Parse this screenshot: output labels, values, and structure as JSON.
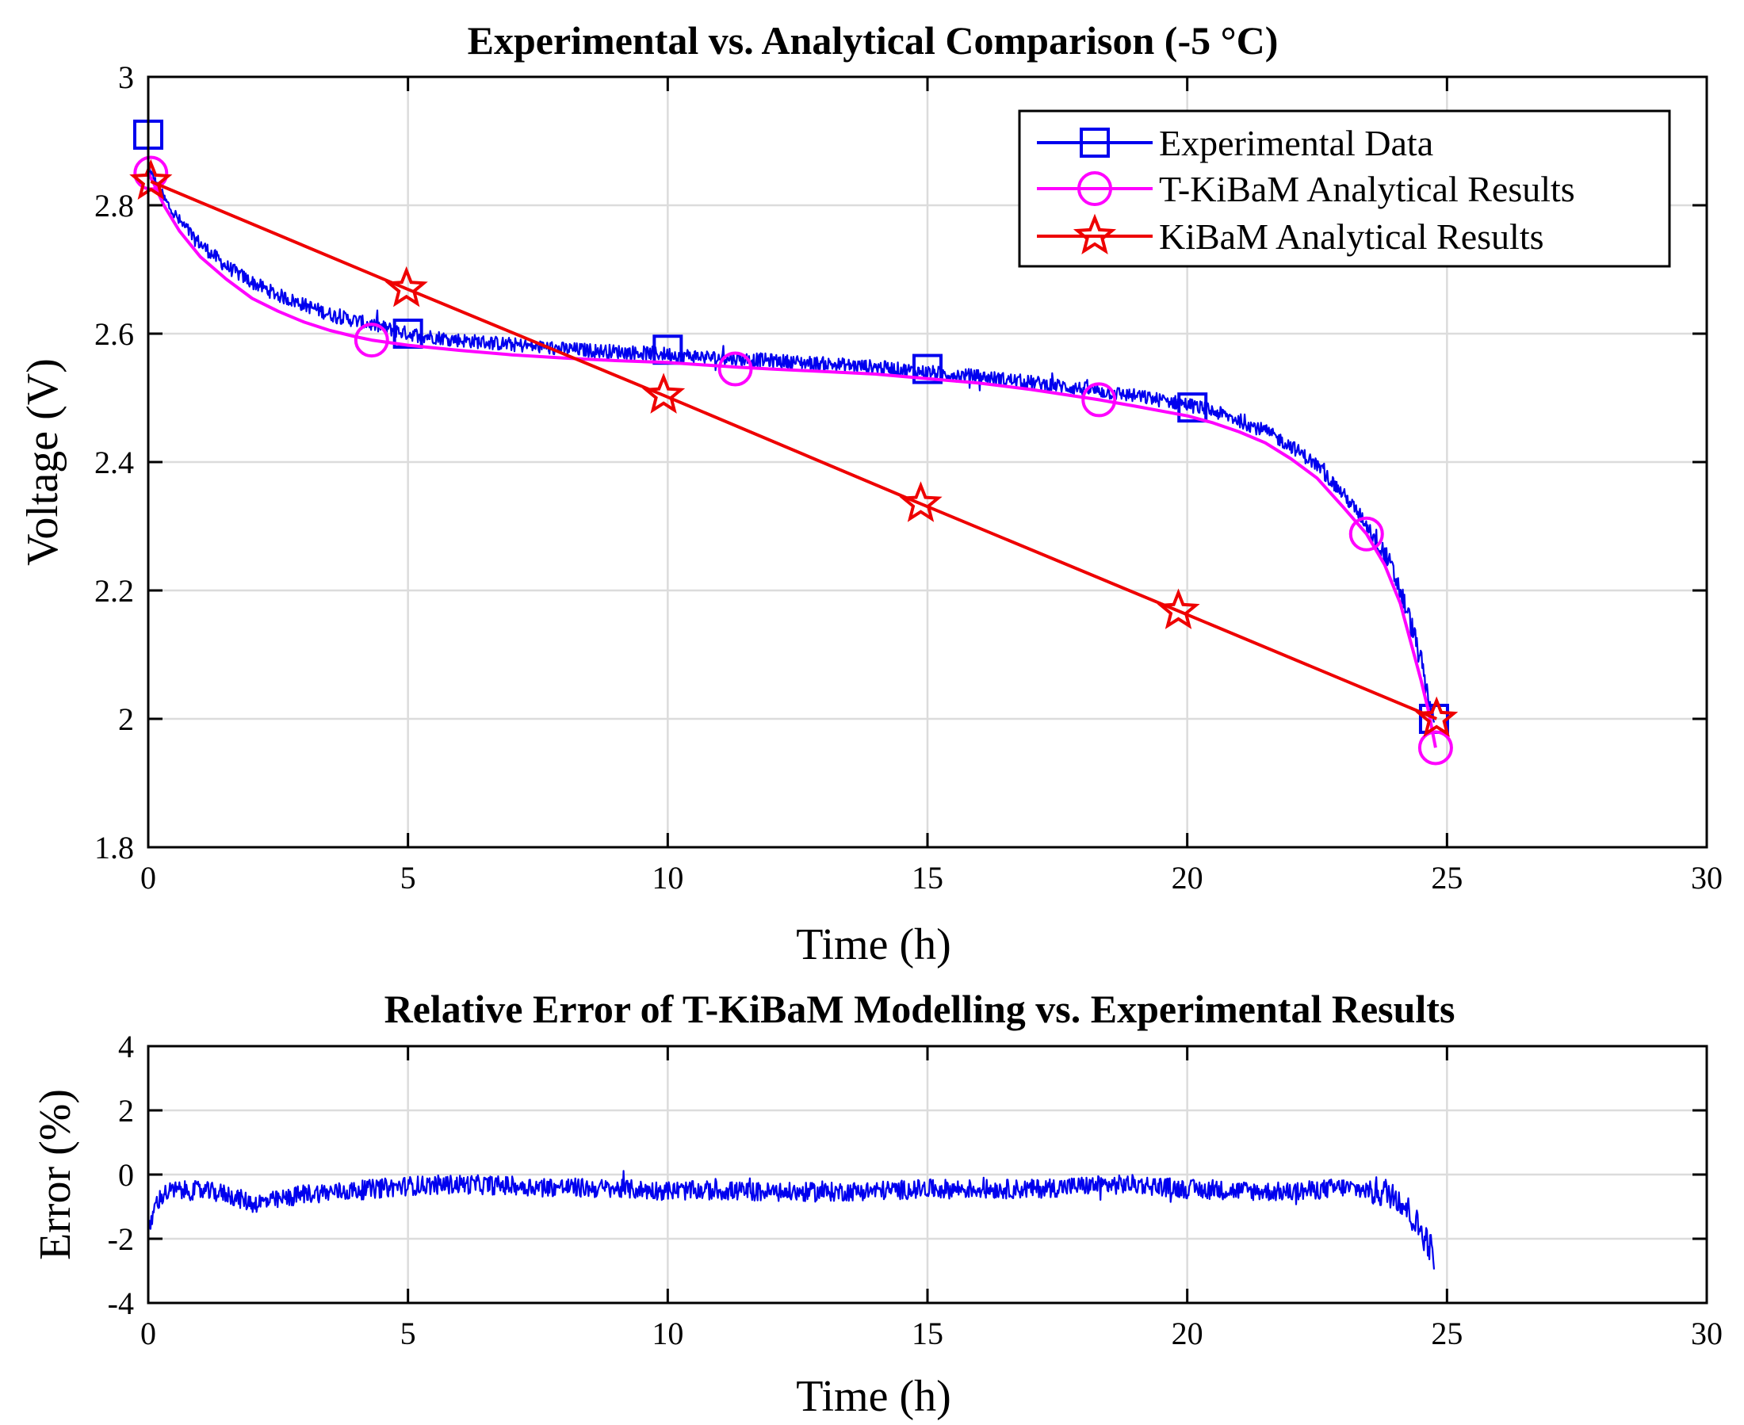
{
  "chart_data": [
    {
      "type": "line",
      "title": "Experimental vs. Analytical Comparison (-5 °C)",
      "xlabel": "Time (h)",
      "ylabel": "Voltage (V)",
      "xlim": [
        0,
        30
      ],
      "ylim": [
        1.8,
        3
      ],
      "xticks": [
        0,
        5,
        10,
        15,
        20,
        25,
        30
      ],
      "xtick_labels": [
        "0",
        "5",
        "10",
        "15",
        "20",
        "25",
        "30"
      ],
      "yticks": [
        1.8,
        2,
        2.2,
        2.4,
        2.6,
        2.8,
        3
      ],
      "ytick_labels": [
        "1.8",
        "2",
        "2.2",
        "2.4",
        "2.6",
        "2.8",
        "3"
      ],
      "grid": true,
      "legend_position": "top-right",
      "series": [
        {
          "name": "Experimental Data",
          "color": "#0000ee",
          "marker": "square",
          "noisy": true,
          "x": [
            0,
            0.1,
            0.3,
            0.6,
            1.0,
            1.5,
            2.0,
            2.5,
            3.0,
            3.5,
            4.0,
            4.5,
            5.0,
            6,
            7,
            8,
            9,
            10,
            11,
            12,
            13,
            14,
            15,
            16,
            17,
            18,
            19,
            20,
            20.5,
            21,
            21.5,
            22,
            22.5,
            23,
            23.3,
            23.6,
            23.9,
            24.1,
            24.3,
            24.5,
            24.65,
            24.75
          ],
          "y": [
            2.86,
            2.84,
            2.81,
            2.775,
            2.74,
            2.705,
            2.68,
            2.66,
            2.645,
            2.63,
            2.62,
            2.61,
            2.6,
            2.59,
            2.583,
            2.576,
            2.572,
            2.568,
            2.562,
            2.558,
            2.553,
            2.548,
            2.54,
            2.533,
            2.524,
            2.514,
            2.503,
            2.49,
            2.479,
            2.465,
            2.448,
            2.425,
            2.395,
            2.35,
            2.32,
            2.285,
            2.24,
            2.2,
            2.15,
            2.09,
            2.03,
            2.0
          ],
          "marker_x": [
            0,
            5.0,
            10.0,
            15.0,
            20.1,
            24.75
          ],
          "marker_y": [
            2.91,
            2.6,
            2.575,
            2.545,
            2.485,
            2.0
          ]
        },
        {
          "name": "T-KiBaM Analytical Results",
          "color": "#ff00ff",
          "marker": "circle",
          "noisy": false,
          "x": [
            0,
            0.1,
            0.3,
            0.6,
            1.0,
            1.5,
            2.0,
            2.5,
            3.0,
            3.5,
            4.0,
            4.3,
            5.0,
            6,
            7,
            8,
            9,
            10,
            11.3,
            12,
            13,
            14,
            15,
            16,
            17,
            18.3,
            19,
            20,
            20.5,
            21,
            21.5,
            22,
            22.5,
            23,
            23.45,
            23.8,
            24.1,
            24.3,
            24.5,
            24.65,
            24.78
          ],
          "y": [
            2.85,
            2.835,
            2.8,
            2.76,
            2.72,
            2.685,
            2.655,
            2.635,
            2.618,
            2.605,
            2.595,
            2.59,
            2.582,
            2.574,
            2.567,
            2.562,
            2.558,
            2.555,
            2.548,
            2.545,
            2.541,
            2.537,
            2.53,
            2.523,
            2.513,
            2.497,
            2.487,
            2.472,
            2.461,
            2.447,
            2.43,
            2.405,
            2.375,
            2.33,
            2.288,
            2.24,
            2.18,
            2.12,
            2.06,
            2.01,
            1.955
          ],
          "marker_x": [
            0.05,
            4.3,
            11.3,
            18.3,
            23.45,
            24.78
          ],
          "marker_y": [
            2.85,
            2.59,
            2.545,
            2.497,
            2.288,
            1.955
          ]
        },
        {
          "name": "KiBaM Analytical Results",
          "color": "#ee0000",
          "marker": "star",
          "noisy": false,
          "x": [
            0.05,
            4.97,
            9.92,
            14.87,
            19.83,
            24.8
          ],
          "y": [
            2.837,
            2.67,
            2.504,
            2.335,
            2.168,
            2.0
          ],
          "marker_x": [
            0.05,
            4.97,
            9.92,
            14.87,
            19.83,
            24.8
          ],
          "marker_y": [
            2.837,
            2.67,
            2.504,
            2.335,
            2.168,
            2.0
          ]
        }
      ]
    },
    {
      "type": "line",
      "title": "Relative Error of T-KiBaM Modelling vs. Experimental Results",
      "xlabel": "Time (h)",
      "ylabel": "Error (%)",
      "xlim": [
        0,
        30
      ],
      "ylim": [
        -4,
        4
      ],
      "xticks": [
        0,
        5,
        10,
        15,
        20,
        25,
        30
      ],
      "xtick_labels": [
        "0",
        "5",
        "10",
        "15",
        "20",
        "25",
        "30"
      ],
      "yticks": [
        -4,
        -2,
        0,
        2,
        4
      ],
      "ytick_labels": [
        "-4",
        "-2",
        "0",
        "2",
        "4"
      ],
      "grid": true,
      "series": [
        {
          "name": "Relative Error",
          "color": "#0000ee",
          "noisy": true,
          "x": [
            0,
            0.05,
            0.15,
            0.3,
            0.5,
            1.0,
            1.5,
            2.0,
            2.5,
            3,
            4,
            5,
            6,
            7,
            8,
            9,
            10,
            11,
            12,
            13,
            14,
            15,
            16,
            17,
            18,
            19,
            20,
            21,
            22,
            23,
            23.5,
            24,
            24.2,
            24.4,
            24.6,
            24.75
          ],
          "y": [
            -2.0,
            -1.5,
            -0.9,
            -0.6,
            -0.5,
            -0.5,
            -0.6,
            -0.9,
            -0.8,
            -0.6,
            -0.5,
            -0.35,
            -0.3,
            -0.35,
            -0.4,
            -0.45,
            -0.5,
            -0.5,
            -0.55,
            -0.55,
            -0.5,
            -0.45,
            -0.45,
            -0.45,
            -0.35,
            -0.3,
            -0.45,
            -0.5,
            -0.55,
            -0.4,
            -0.5,
            -0.6,
            -1.0,
            -1.5,
            -2.0,
            -2.5
          ]
        }
      ]
    }
  ]
}
